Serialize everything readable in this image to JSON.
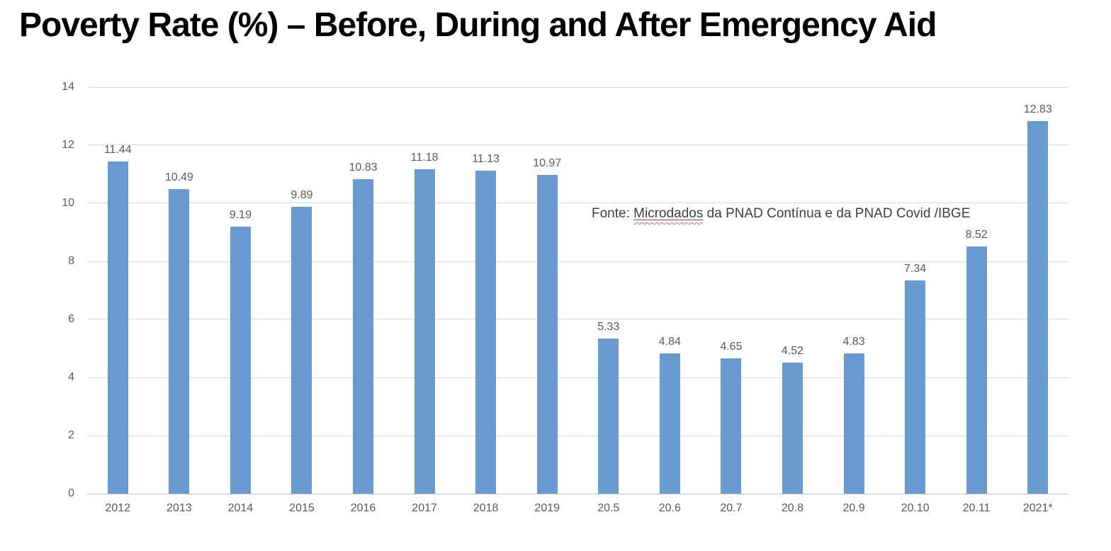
{
  "title": "Poverty Rate (%) – Before, During and After Emergency Aid",
  "annotation": {
    "prefix": "Fonte: ",
    "misspelled_word": "Microdados",
    "suffix": " da PNAD Contínua e da PNAD Covid /IBGE",
    "full_text": "Fonte: Microdados da PNAD Contínua e da PNAD Covid /IBGE"
  },
  "colors": {
    "bar": "#6A9BD0",
    "gridline": "#D9D9D9",
    "axis_line": "#BFBFBF",
    "tick_label": "#595959",
    "annotation_text": "#404040",
    "title_text": "#000000",
    "squiggle": "#e0635a"
  },
  "chart_data": {
    "type": "bar",
    "title": "Poverty Rate (%) – Before, During and After Emergency Aid",
    "categories": [
      "2012",
      "2013",
      "2014",
      "2015",
      "2016",
      "2017",
      "2018",
      "2019",
      "20.5",
      "20.6",
      "20.7",
      "20.8",
      "20.9",
      "20.10",
      "20.11",
      "2021*"
    ],
    "values": [
      11.44,
      10.49,
      9.19,
      9.89,
      10.83,
      11.18,
      11.13,
      10.97,
      5.33,
      4.84,
      4.65,
      4.52,
      4.83,
      7.34,
      8.52,
      12.83
    ],
    "value_labels": [
      "11.44",
      "10.49",
      "9.19",
      "9.89",
      "10.83",
      "11.18",
      "11.13",
      "10.97",
      "5.33",
      "4.84",
      "4.65",
      "4.52",
      "4.83",
      "7.34",
      "8.52",
      "12.83"
    ],
    "xlabel": "",
    "ylabel": "",
    "ylim": [
      0,
      14
    ],
    "y_ticks": [
      0,
      2,
      4,
      6,
      8,
      10,
      12,
      14
    ],
    "grid": "horizontal gridlines on, no vertical axis line",
    "legend": "none",
    "annotation": "Fonte: Microdados da PNAD Contínua e da PNAD Covid /IBGE"
  }
}
